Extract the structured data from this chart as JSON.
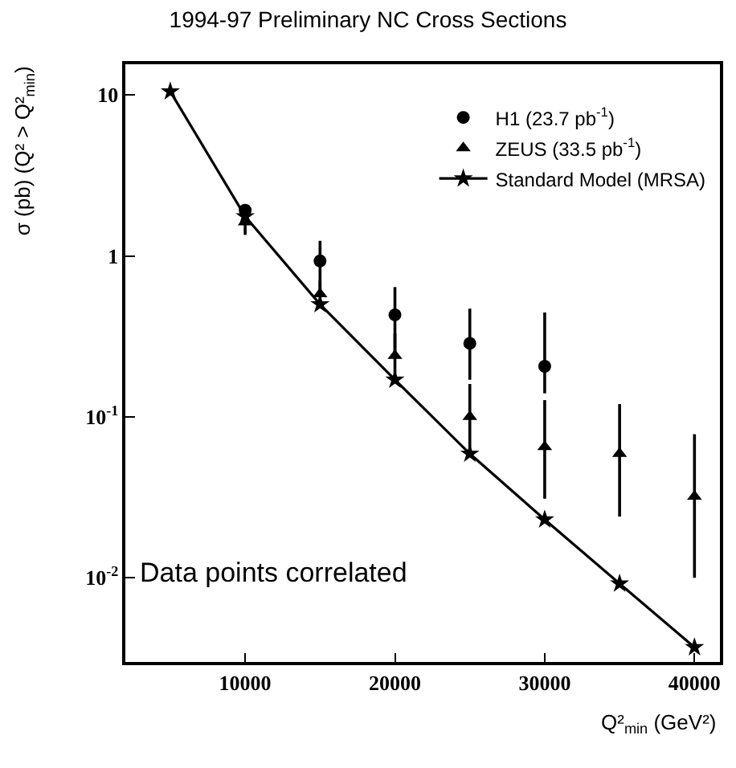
{
  "chart_data": {
    "type": "scatter",
    "title": "1994-97 Preliminary NC Cross Sections",
    "xlabel": "Q²$_{min}$ (GeV²)",
    "ylabel": "σ (pb) (Q² > Q²$_{min}$)",
    "log": "y",
    "grid": false,
    "legend": "top right",
    "xlim": [
      2000,
      41700
    ],
    "xticks": [
      10000,
      20000,
      30000,
      40000
    ],
    "ylim": [
      0.003,
      15.5
    ],
    "yticks": [
      {
        "value": 0.01,
        "label": "10$^{-2}$"
      },
      {
        "value": 0.1,
        "label": "10$^{-1}$"
      },
      1,
      10
    ],
    "annotations": [
      "Data points correlated"
    ],
    "series": [
      {
        "name": "H1 (23.7 pb$^{-1}$)",
        "marker": "circle",
        "color": "#000000",
        "x": [
          10000,
          15000,
          20000,
          25000,
          30000
        ],
        "values": [
          1.92,
          0.93,
          0.43,
          0.286,
          0.206
        ],
        "errors": [
          null,
          [
            0.58,
            1.24
          ],
          [
            0.245,
            0.64
          ],
          [
            0.17,
            0.47
          ],
          [
            0.14,
            0.445
          ]
        ]
      },
      {
        "name": "ZEUS (33.5 pb$^{-1}$)",
        "marker": "triangle",
        "color": "#000000",
        "x": [
          10000,
          15000,
          20000,
          25000,
          30000,
          35000,
          40000
        ],
        "values": [
          1.62,
          0.58,
          0.24,
          0.1,
          0.065,
          0.059,
          0.032
        ],
        "errors": [
          [
            1.35,
            1.95
          ],
          [
            0.5,
            0.7
          ],
          [
            0.17,
            0.33
          ],
          [
            0.06,
            0.16
          ],
          [
            0.031,
            0.127
          ],
          [
            0.024,
            0.12
          ],
          [
            0.01,
            0.078
          ]
        ]
      },
      {
        "name": "Standard Model (MRSA)",
        "type": "line",
        "marker": "star",
        "line_style": "solid",
        "color": "#000000",
        "x": [
          5000,
          10000,
          15000,
          20000,
          25000,
          30000,
          35000,
          40000
        ],
        "values": [
          10.5,
          1.76,
          0.5,
          0.17,
          0.059,
          0.023,
          0.0092,
          0.0037
        ]
      }
    ]
  }
}
